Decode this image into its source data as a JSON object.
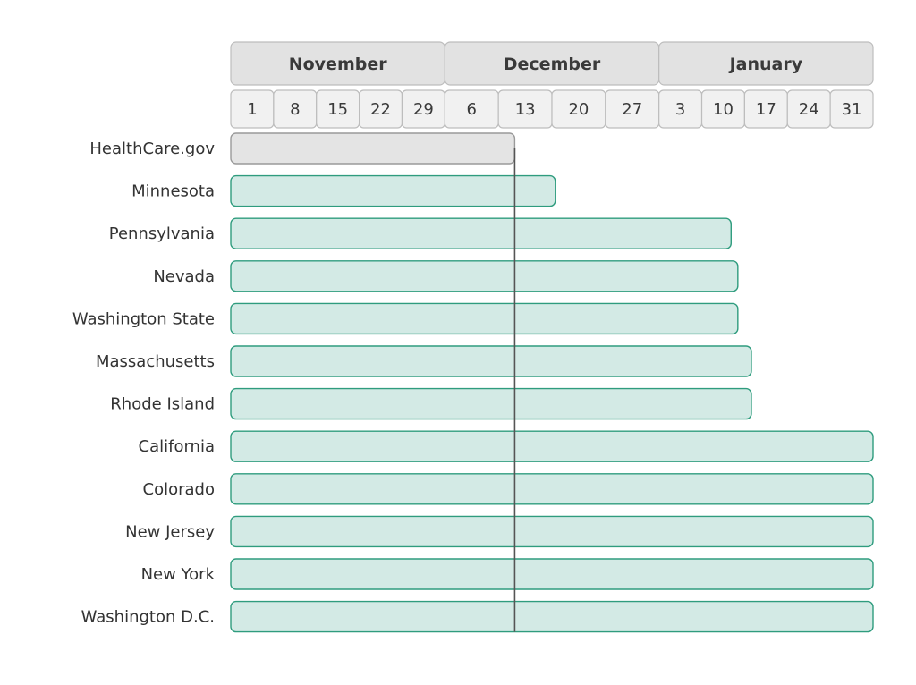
{
  "chart_data": {
    "type": "gantt",
    "title": "",
    "months": [
      "November",
      "December",
      "January"
    ],
    "week_ticks": [
      "1",
      "8",
      "15",
      "22",
      "29",
      "6",
      "13",
      "20",
      "27",
      "3",
      "10",
      "17",
      "24",
      "31"
    ],
    "x_range": [
      "2013-11-01",
      "2014-02-04"
    ],
    "reference_line": "2013-12-13",
    "series": [
      {
        "label": "HealthCare.gov",
        "start": "2013-11-01",
        "end": "2013-12-13",
        "highlight": false
      },
      {
        "label": "Minnesota",
        "start": "2013-11-01",
        "end": "2013-12-19",
        "highlight": true
      },
      {
        "label": "Pennsylvania",
        "start": "2013-11-01",
        "end": "2014-01-14",
        "highlight": true
      },
      {
        "label": "Nevada",
        "start": "2013-11-01",
        "end": "2014-01-15",
        "highlight": true
      },
      {
        "label": "Washington State",
        "start": "2013-11-01",
        "end": "2014-01-15",
        "highlight": true
      },
      {
        "label": "Massachusetts",
        "start": "2013-11-01",
        "end": "2014-01-17",
        "highlight": true
      },
      {
        "label": "Rhode Island",
        "start": "2013-11-01",
        "end": "2014-01-17",
        "highlight": true
      },
      {
        "label": "California",
        "start": "2013-11-01",
        "end": "2014-02-04",
        "highlight": true
      },
      {
        "label": "Colorado",
        "start": "2013-11-01",
        "end": "2014-02-04",
        "highlight": true
      },
      {
        "label": "New Jersey",
        "start": "2013-11-01",
        "end": "2014-02-04",
        "highlight": true
      },
      {
        "label": "New York",
        "start": "2013-11-01",
        "end": "2014-02-04",
        "highlight": true
      },
      {
        "label": "Washington D.C.",
        "start": "2013-11-01",
        "end": "2014-02-04",
        "highlight": true
      }
    ],
    "colors": {
      "highlight_fill": "#d3eae5",
      "highlight_stroke": "#2f9c7e",
      "base_fill": "#e4e4e4",
      "base_stroke": "#9a9a9a",
      "reference_line": "#555555"
    }
  }
}
